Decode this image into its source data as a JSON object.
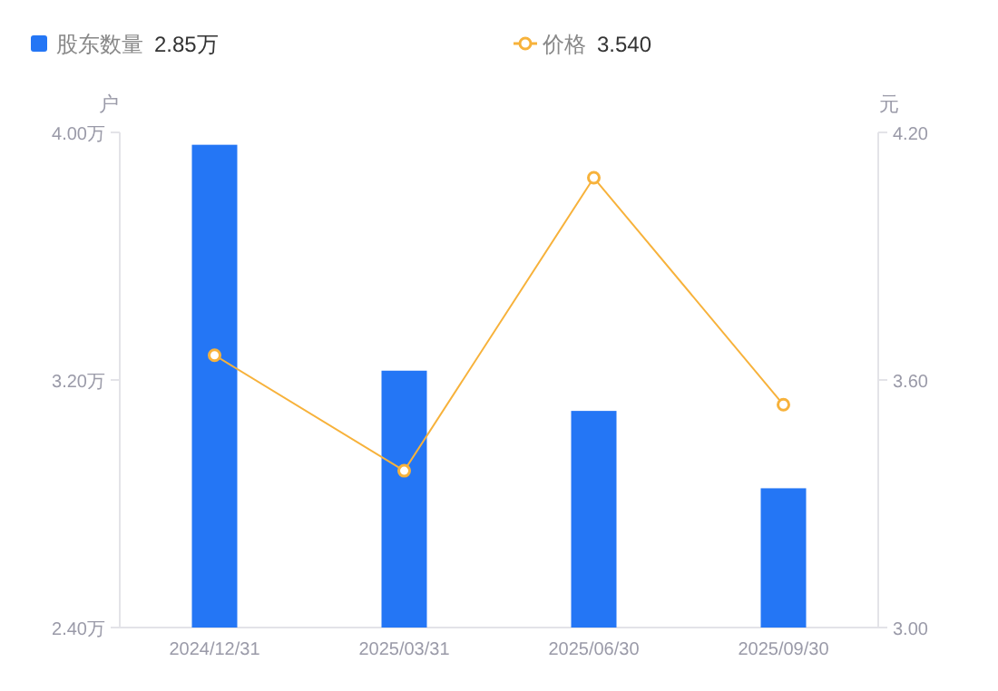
{
  "chart_data": {
    "type": "bar",
    "ylabel": "户",
    "y2label": "元",
    "categories": [
      "2024/12/31",
      "2025/03/31",
      "2025/06/30",
      "2025/09/30"
    ],
    "series": [
      {
        "name": "股东数量",
        "color": "#2476f5",
        "values": [
          3.96,
          3.23,
          3.1,
          2.85
        ]
      },
      {
        "name": "价格",
        "type": "line",
        "axis": "y2",
        "color": "#f7b23b",
        "marker": "circle",
        "values": [
          3.66,
          3.38,
          4.09,
          3.54
        ]
      }
    ],
    "ylim": [
      2.4,
      4.0
    ],
    "yticks": [
      {
        "value": 2.4,
        "label": "2.40万"
      },
      {
        "value": 3.2,
        "label": "3.20万"
      },
      {
        "value": 4.0,
        "label": "4.00万"
      }
    ],
    "y2lim": [
      3.0,
      4.2
    ],
    "y2ticks": [
      {
        "value": 3.0,
        "label": "3.00"
      },
      {
        "value": 3.6,
        "label": "3.60"
      },
      {
        "value": 4.2,
        "label": "4.20"
      }
    ],
    "annotations": [
      "2.85万",
      "3.540"
    ],
    "legend": "top left",
    "grid": false
  }
}
